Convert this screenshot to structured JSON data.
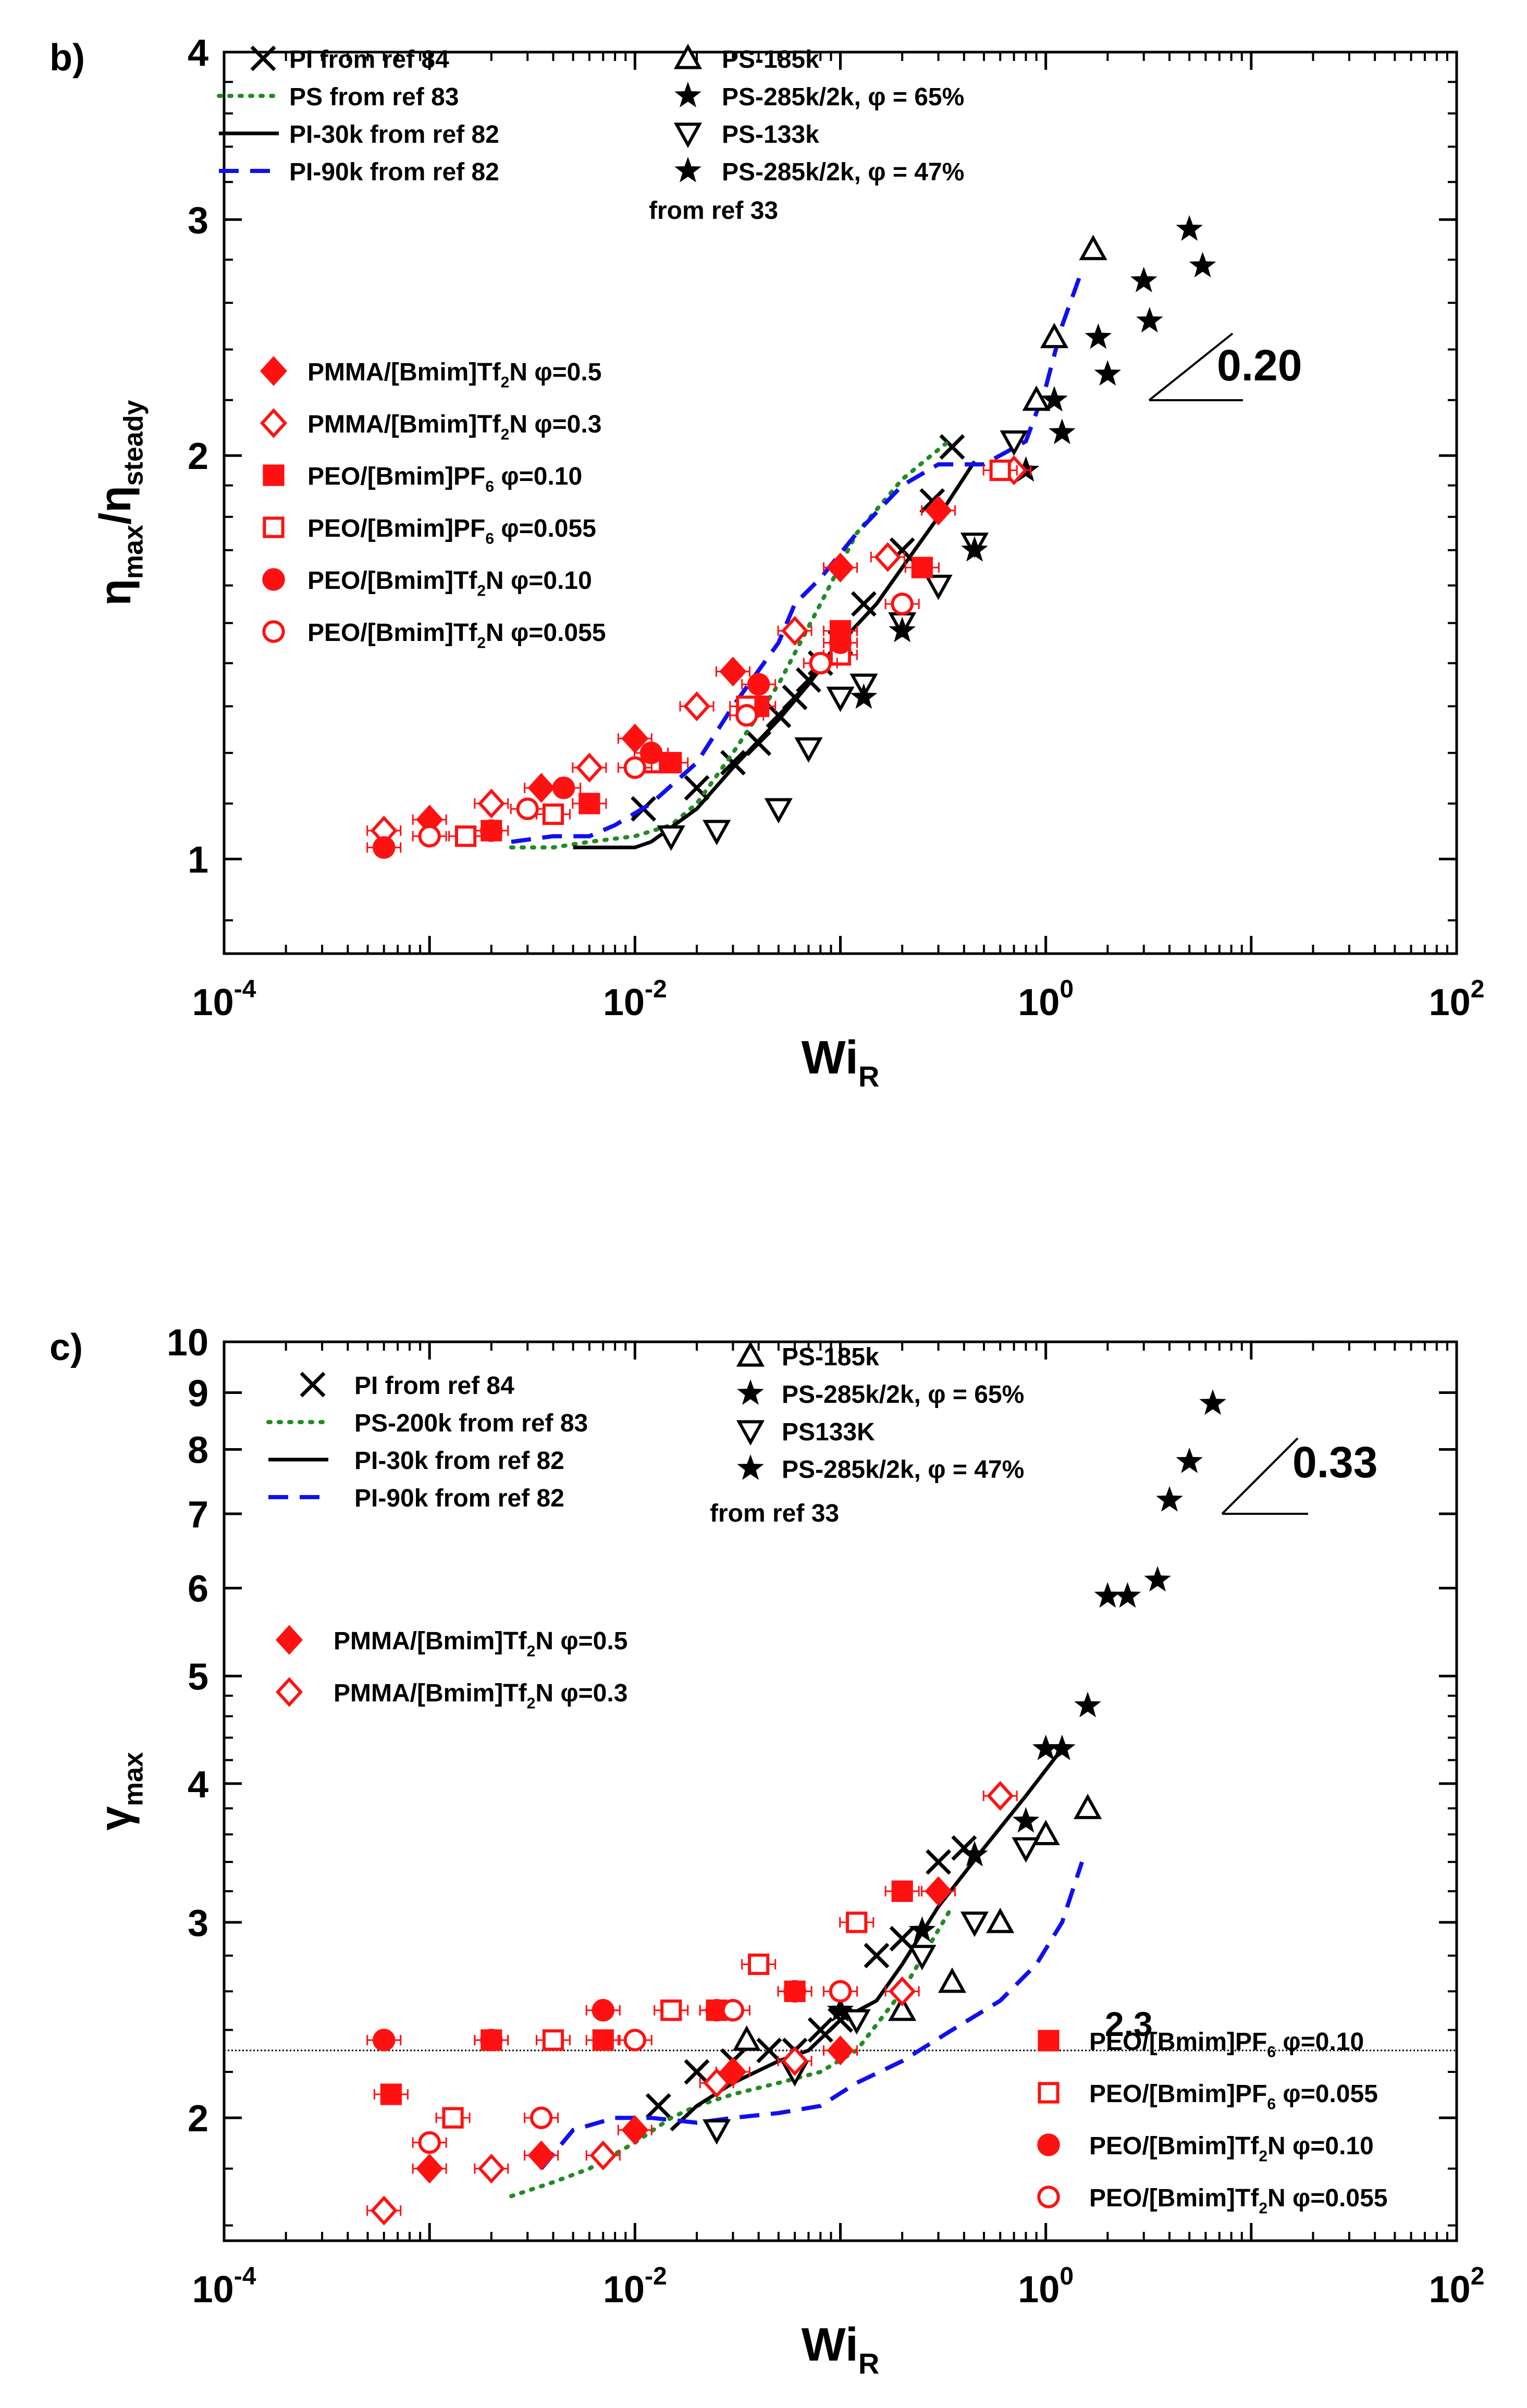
{
  "colors": {
    "red": "#ff1111",
    "black": "#000000",
    "green": "#228b22",
    "blue": "#1010ee"
  },
  "chart_data": [
    {
      "type": "scatter",
      "panel_label": "b)",
      "xlabel": {
        "main": "Wi",
        "sub": "R"
      },
      "ylabel": {
        "main": "η",
        "sub1": "max",
        "mid": "/η",
        "sub2": "steady"
      },
      "xscale": "log",
      "yscale": "log",
      "xlim": [
        0.0001,
        100
      ],
      "ylim": [
        0.85,
        4
      ],
      "xticks": [
        {
          "v": 0.0001,
          "base": "10",
          "exp": "-4"
        },
        {
          "v": 0.01,
          "base": "10",
          "exp": "-2"
        },
        {
          "v": 1,
          "base": "10",
          "exp": "0"
        },
        {
          "v": 100,
          "base": "10",
          "exp": "2"
        }
      ],
      "yticks": [
        {
          "v": 1,
          "label": "1"
        },
        {
          "v": 2,
          "label": "2"
        },
        {
          "v": 3,
          "label": "3"
        },
        {
          "v": 4,
          "label": "4"
        }
      ],
      "slope_label": "0.20",
      "annotation_from": "from ref 33",
      "series": [
        {
          "name": "PI from ref 84",
          "marker": "x",
          "color": "black",
          "x": [
            0.011,
            0.02,
            0.03,
            0.04,
            0.05,
            0.06,
            0.07,
            0.08,
            0.1,
            0.13,
            0.2,
            0.28,
            0.35
          ],
          "y": [
            1.09,
            1.13,
            1.18,
            1.22,
            1.28,
            1.32,
            1.36,
            1.4,
            1.45,
            1.55,
            1.7,
            1.85,
            2.03
          ]
        },
        {
          "name": "PS from ref 83",
          "line": "dotted",
          "color": "green",
          "x": [
            0.0025,
            0.004,
            0.006,
            0.01,
            0.015,
            0.02,
            0.03,
            0.05,
            0.08,
            0.12,
            0.2,
            0.35
          ],
          "y": [
            1.02,
            1.02,
            1.03,
            1.04,
            1.06,
            1.1,
            1.2,
            1.35,
            1.55,
            1.75,
            1.92,
            2.06
          ]
        },
        {
          "name": "PI-30k from ref 82",
          "line": "solid",
          "color": "black",
          "x": [
            0.005,
            0.007,
            0.01,
            0.012,
            0.02,
            0.03,
            0.05,
            0.07,
            0.1,
            0.15,
            0.2,
            0.3,
            0.45
          ],
          "y": [
            1.02,
            1.02,
            1.02,
            1.03,
            1.09,
            1.17,
            1.27,
            1.35,
            1.45,
            1.55,
            1.65,
            1.8,
            1.98
          ]
        },
        {
          "name": "PI-90k from ref 82",
          "line": "dashed",
          "color": "blue",
          "x": [
            0.0025,
            0.004,
            0.006,
            0.008,
            0.012,
            0.02,
            0.03,
            0.05,
            0.06,
            0.08,
            0.12,
            0.2,
            0.3,
            0.5,
            0.8,
            1.0,
            1.2,
            1.5
          ],
          "y": [
            1.03,
            1.04,
            1.04,
            1.06,
            1.1,
            1.18,
            1.3,
            1.45,
            1.55,
            1.62,
            1.75,
            1.9,
            1.97,
            1.97,
            2.05,
            2.25,
            2.5,
            2.75
          ]
        },
        {
          "name": "PS-185k",
          "marker": "triangle-up",
          "color": "black",
          "x": [
            0.9,
            1.1,
            1.7
          ],
          "y": [
            2.2,
            2.45,
            2.85
          ]
        },
        {
          "name": "PS-285k/2k, φ = 65%",
          "marker": "star",
          "color": "black",
          "x": [
            1.1,
            1.8,
            3.0,
            5.0
          ],
          "y": [
            2.2,
            2.45,
            2.7,
            2.95
          ]
        },
        {
          "name": "PS-133k",
          "marker": "triangle-down",
          "color": "black",
          "x": [
            0.015,
            0.025,
            0.05,
            0.07,
            0.1,
            0.13,
            0.2,
            0.3,
            0.45,
            0.7
          ],
          "y": [
            1.04,
            1.05,
            1.09,
            1.21,
            1.32,
            1.35,
            1.5,
            1.6,
            1.72,
            2.05
          ]
        },
        {
          "name": "PS-285k/2k, φ = 47%",
          "marker": "star",
          "color": "black",
          "x": [
            0.13,
            0.2,
            0.45,
            0.8,
            1.2,
            2.0,
            3.2,
            5.8
          ],
          "y": [
            1.32,
            1.48,
            1.7,
            1.95,
            2.08,
            2.3,
            2.52,
            2.77
          ]
        },
        {
          "name": "PMMA/[Bmim]Tf₂N φ=0.5",
          "marker": "diamond",
          "fill": true,
          "color": "red",
          "x": [
            0.001,
            0.0035,
            0.01,
            0.03,
            0.1,
            0.3
          ],
          "y": [
            1.07,
            1.13,
            1.23,
            1.38,
            1.65,
            1.82
          ]
        },
        {
          "name": "PMMA/[Bmim]Tf₂N φ=0.3",
          "marker": "diamond",
          "fill": false,
          "color": "red",
          "x": [
            0.0006,
            0.002,
            0.006,
            0.02,
            0.06,
            0.17,
            0.7
          ],
          "y": [
            1.05,
            1.1,
            1.17,
            1.3,
            1.48,
            1.68,
            1.95
          ]
        },
        {
          "name": "PEO/[Bmim]PF₆  φ=0.10",
          "marker": "square",
          "fill": true,
          "color": "red",
          "x": [
            0.002,
            0.006,
            0.015,
            0.04,
            0.1,
            0.25
          ],
          "y": [
            1.05,
            1.1,
            1.18,
            1.3,
            1.48,
            1.65
          ]
        },
        {
          "name": "PEO/[Bmim]PF₆  φ=0.055",
          "marker": "square",
          "fill": false,
          "color": "red",
          "x": [
            0.0015,
            0.004,
            0.012,
            0.035,
            0.1,
            0.6
          ],
          "y": [
            1.04,
            1.08,
            1.18,
            1.3,
            1.42,
            1.95
          ]
        },
        {
          "name": "PEO/[Bmim]Tf₂N φ=0.10",
          "marker": "circle",
          "fill": true,
          "color": "red",
          "x": [
            0.0006,
            0.002,
            0.0045,
            0.012,
            0.04,
            0.1
          ],
          "y": [
            1.02,
            1.05,
            1.13,
            1.2,
            1.35,
            1.45
          ]
        },
        {
          "name": "PEO/[Bmim]Tf₂N φ=0.055",
          "marker": "circle",
          "fill": false,
          "color": "red",
          "x": [
            0.001,
            0.003,
            0.01,
            0.035,
            0.08,
            0.2
          ],
          "y": [
            1.04,
            1.09,
            1.17,
            1.28,
            1.4,
            1.55
          ]
        }
      ]
    },
    {
      "type": "scatter",
      "panel_label": "c)",
      "xlabel": {
        "main": "Wi",
        "sub": "R"
      },
      "ylabel": {
        "main": "γ",
        "sub1": "max",
        "mid": "",
        "sub2": ""
      },
      "xscale": "log",
      "yscale": "log",
      "xlim": [
        0.0001,
        100
      ],
      "ylim": [
        1.55,
        10
      ],
      "xticks": [
        {
          "v": 0.0001,
          "base": "10",
          "exp": "-4"
        },
        {
          "v": 0.01,
          "base": "10",
          "exp": "-2"
        },
        {
          "v": 1,
          "base": "10",
          "exp": "0"
        },
        {
          "v": 100,
          "base": "10",
          "exp": "2"
        }
      ],
      "yticks": [
        {
          "v": 2,
          "label": "2"
        },
        {
          "v": 3,
          "label": "3"
        },
        {
          "v": 4,
          "label": "4"
        },
        {
          "v": 5,
          "label": "5"
        },
        {
          "v": 6,
          "label": "6"
        },
        {
          "v": 7,
          "label": "7"
        },
        {
          "v": 8,
          "label": "8"
        },
        {
          "v": 9,
          "label": "9"
        },
        {
          "v": 10,
          "label": "10"
        }
      ],
      "slope_label": "0.33",
      "hline": {
        "y": 2.3,
        "label": "2.3"
      },
      "annotation_from": "from ref 33",
      "series": [
        {
          "name": "PI from ref 84",
          "marker": "x",
          "color": "black",
          "x": [
            0.013,
            0.02,
            0.03,
            0.045,
            0.06,
            0.08,
            0.1,
            0.15,
            0.2,
            0.3,
            0.4
          ],
          "y": [
            2.05,
            2.2,
            2.25,
            2.3,
            2.3,
            2.4,
            2.45,
            2.8,
            2.9,
            3.4,
            3.5
          ]
        },
        {
          "name": "PS-200k from ref 83",
          "line": "dotted",
          "color": "green",
          "x": [
            0.0025,
            0.004,
            0.006,
            0.01,
            0.015,
            0.02,
            0.03,
            0.05,
            0.08,
            0.12,
            0.2,
            0.35
          ],
          "y": [
            1.7,
            1.75,
            1.8,
            1.9,
            2.0,
            2.05,
            2.1,
            2.15,
            2.2,
            2.3,
            2.6,
            3.1
          ]
        },
        {
          "name": "PI-30k from ref 82",
          "line": "solid",
          "color": "black",
          "x": [
            0.015,
            0.02,
            0.03,
            0.05,
            0.07,
            0.1,
            0.15,
            0.2,
            0.3,
            0.5,
            0.8,
            1.2
          ],
          "y": [
            1.95,
            2.05,
            2.15,
            2.25,
            2.3,
            2.45,
            2.55,
            2.75,
            3.1,
            3.5,
            3.9,
            4.3
          ]
        },
        {
          "name": "PI-90k from ref 82",
          "line": "dashed",
          "color": "blue",
          "x": [
            0.0035,
            0.005,
            0.008,
            0.012,
            0.02,
            0.03,
            0.05,
            0.08,
            0.12,
            0.2,
            0.35,
            0.6,
            0.9,
            1.2,
            1.5
          ],
          "y": [
            1.8,
            1.95,
            2.0,
            2.0,
            1.98,
            2.0,
            2.02,
            2.05,
            2.15,
            2.25,
            2.4,
            2.55,
            2.75,
            3.0,
            3.4
          ]
        },
        {
          "name": "PS-185k",
          "marker": "triangle-up",
          "color": "black",
          "x": [
            0.035,
            0.2,
            0.35,
            0.6,
            1.0,
            1.6
          ],
          "y": [
            2.35,
            2.5,
            2.65,
            3.0,
            3.6,
            3.8
          ]
        },
        {
          "name": "PS-285k/2k, φ = 65%",
          "marker": "star",
          "color": "black",
          "x": [
            1.0,
            1.6,
            2.5,
            4.0,
            6.5
          ],
          "y": [
            4.3,
            4.7,
            5.9,
            7.2,
            8.8
          ]
        },
        {
          "name": "PS133K",
          "marker": "triangle-down",
          "color": "black",
          "x": [
            0.025,
            0.06,
            0.12,
            0.25,
            0.45,
            0.8
          ],
          "y": [
            1.95,
            2.2,
            2.45,
            2.8,
            3.0,
            3.5
          ]
        },
        {
          "name": "PS-285k/2k, φ = 47%",
          "marker": "star",
          "color": "black",
          "x": [
            0.1,
            0.25,
            0.45,
            0.8,
            1.2,
            2.0,
            3.5,
            5.0
          ],
          "y": [
            2.5,
            2.95,
            3.45,
            3.7,
            4.3,
            5.9,
            6.1,
            7.8
          ]
        },
        {
          "name": "PMMA/[Bmim]Tf₂N φ=0.5",
          "marker": "diamond",
          "fill": true,
          "color": "red",
          "x": [
            0.001,
            0.0035,
            0.01,
            0.03,
            0.1,
            0.3
          ],
          "y": [
            1.8,
            1.85,
            1.95,
            2.2,
            2.3,
            3.2
          ]
        },
        {
          "name": "PMMA/[Bmim]Tf₂N φ=0.3",
          "marker": "diamond",
          "fill": false,
          "color": "red",
          "x": [
            0.0006,
            0.002,
            0.007,
            0.025,
            0.06,
            0.2,
            0.6
          ],
          "y": [
            1.65,
            1.8,
            1.85,
            2.15,
            2.25,
            2.6,
            3.9
          ]
        },
        {
          "name": "PEO/[Bmim]PF₆  φ=0.10",
          "marker": "square",
          "fill": true,
          "color": "red",
          "x": [
            0.00065,
            0.002,
            0.007,
            0.025,
            0.06,
            0.2
          ],
          "y": [
            2.1,
            2.35,
            2.35,
            2.5,
            2.6,
            3.2
          ]
        },
        {
          "name": "PEO/[Bmim]PF₆  φ=0.055",
          "marker": "square",
          "fill": false,
          "color": "red",
          "x": [
            0.0013,
            0.004,
            0.015,
            0.04,
            0.12
          ],
          "y": [
            2.0,
            2.35,
            2.5,
            2.75,
            3.0
          ]
        },
        {
          "name": "PEO/[Bmim]Tf₂N φ=0.10",
          "marker": "circle",
          "fill": true,
          "color": "red",
          "x": [
            0.0006,
            0.002,
            0.007,
            0.025,
            0.06
          ],
          "y": [
            2.35,
            2.35,
            2.5,
            2.5,
            2.6
          ]
        },
        {
          "name": "PEO/[Bmim]Tf₂N φ=0.055",
          "marker": "circle",
          "fill": false,
          "color": "red",
          "x": [
            0.001,
            0.0035,
            0.01,
            0.03,
            0.1
          ],
          "y": [
            1.9,
            2.0,
            2.35,
            2.5,
            2.6
          ]
        }
      ]
    }
  ]
}
